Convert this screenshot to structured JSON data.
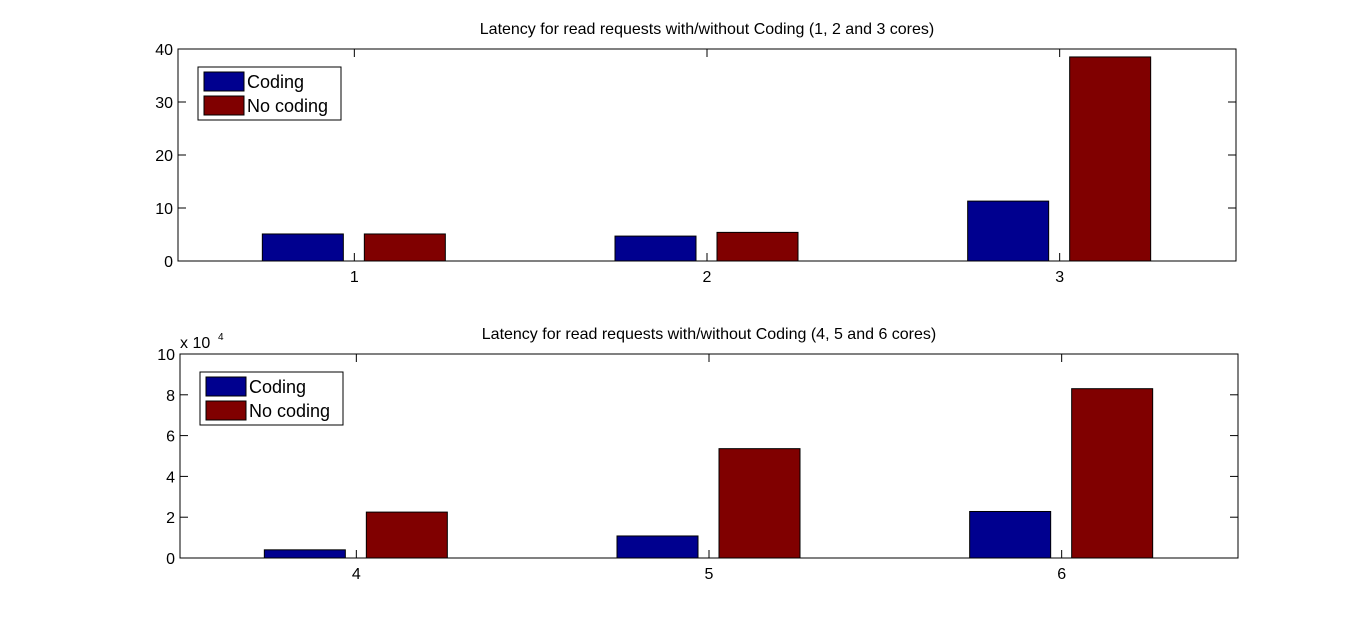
{
  "chart_data": [
    {
      "type": "bar",
      "title": "Latency for read requests with/without Coding (1, 2 and 3 cores)",
      "categories": [
        "1",
        "2",
        "3"
      ],
      "series": [
        {
          "name": "Coding",
          "color": "#00008f",
          "values": [
            5.1,
            4.7,
            11.3
          ]
        },
        {
          "name": "No coding",
          "color": "#800000",
          "values": [
            5.1,
            5.4,
            38.5
          ]
        }
      ],
      "ylim": [
        0,
        40
      ],
      "yticks": [
        "0",
        "10",
        "20",
        "30",
        "40"
      ],
      "yscale_label": "",
      "legend": "top-left",
      "grid": false
    },
    {
      "type": "bar",
      "title": "Latency for read requests with/without Coding (4, 5 and 6 cores)",
      "categories": [
        "4",
        "5",
        "6"
      ],
      "series": [
        {
          "name": "Coding",
          "color": "#00008f",
          "values": [
            0.4,
            1.08,
            2.28
          ]
        },
        {
          "name": "No coding",
          "color": "#800000",
          "values": [
            2.25,
            5.36,
            8.3
          ]
        }
      ],
      "ylim": [
        0,
        10
      ],
      "yticks": [
        "0",
        "2",
        "4",
        "6",
        "8",
        "10"
      ],
      "yscale_label": "x 10",
      "yscale_exponent": "4",
      "legend": "top-left",
      "grid": false
    }
  ]
}
